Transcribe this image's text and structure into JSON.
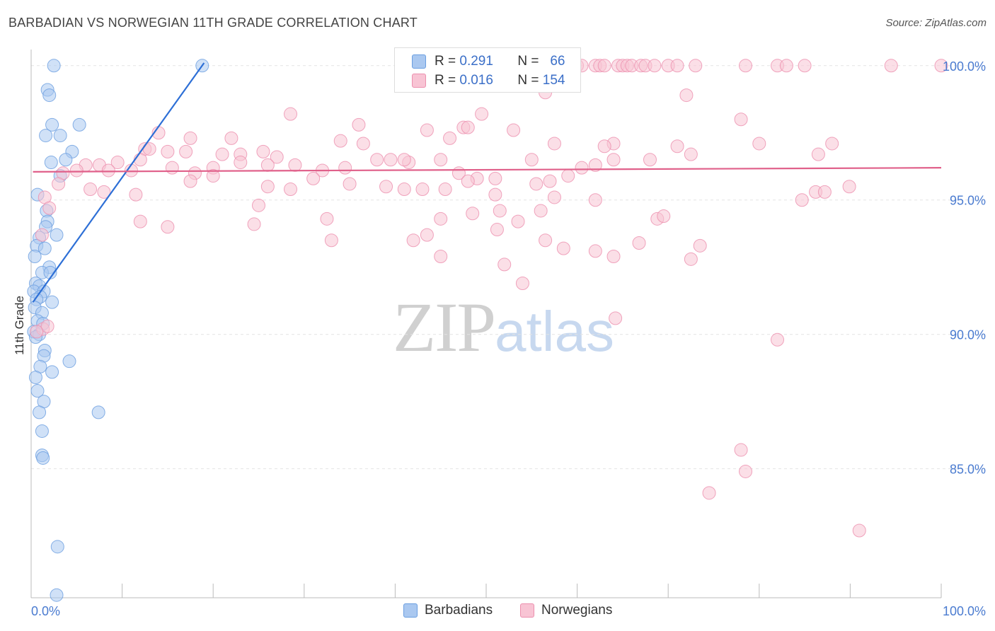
{
  "title": "BARBADIAN VS NORWEGIAN 11TH GRADE CORRELATION CHART",
  "source": "Source: ZipAtlas.com",
  "watermark": {
    "zip": "ZIP",
    "atlas": "atlas"
  },
  "legend": {
    "rows": [
      {
        "r_label": "R =",
        "r_value": "0.291",
        "n_label": "N =",
        "n_value": "66",
        "color": "#aac8f0",
        "border": "#6a9ee0"
      },
      {
        "r_label": "R =",
        "r_value": "0.016",
        "n_label": "N =",
        "n_value": "154",
        "color": "#f8c4d4",
        "border": "#ec8fae"
      }
    ]
  },
  "bottom_legend": [
    {
      "label": "Barbadians",
      "color": "#aac8f0",
      "border": "#6a9ee0"
    },
    {
      "label": "Norwegians",
      "color": "#f8c4d4",
      "border": "#ec8fae"
    }
  ],
  "chart_data": {
    "type": "scatter",
    "title": "BARBADIAN VS NORWEGIAN 11TH GRADE CORRELATION CHART",
    "xlabel": "",
    "ylabel": "11th Grade",
    "xlim": [
      0,
      100
    ],
    "ylim": [
      80.2,
      100.6
    ],
    "x_tick_labels": [
      "0.0%",
      "100.0%"
    ],
    "y_ticks": [
      85,
      90,
      95,
      100
    ],
    "y_tick_labels": [
      "85.0%",
      "90.0%",
      "95.0%",
      "100.0%"
    ],
    "grid": true,
    "series": [
      {
        "name": "Barbadians",
        "color": "#6a9ee0",
        "fill": "#aac8f0",
        "trend": {
          "x": [
            0.2,
            19
          ],
          "y": [
            91.2,
            100.1
          ]
        },
        "points": [
          [
            2.5,
            100
          ],
          [
            18.8,
            100
          ],
          [
            1.8,
            99.1
          ],
          [
            2,
            98.9
          ],
          [
            2.3,
            97.8
          ],
          [
            5.3,
            97.8
          ],
          [
            1.6,
            97.4
          ],
          [
            3.2,
            97.4
          ],
          [
            4.5,
            96.8
          ],
          [
            3.8,
            96.5
          ],
          [
            2.2,
            96.4
          ],
          [
            3.2,
            95.9
          ],
          [
            0.7,
            95.2
          ],
          [
            1.7,
            94.6
          ],
          [
            1.8,
            94.2
          ],
          [
            1.6,
            94.0
          ],
          [
            2.8,
            93.7
          ],
          [
            0.9,
            93.6
          ],
          [
            0.6,
            93.3
          ],
          [
            1.5,
            93.2
          ],
          [
            0.4,
            92.9
          ],
          [
            2.0,
            92.5
          ],
          [
            1.2,
            92.3
          ],
          [
            2.1,
            92.3
          ],
          [
            0.5,
            91.9
          ],
          [
            0.9,
            91.8
          ],
          [
            0.3,
            91.6
          ],
          [
            1.4,
            91.6
          ],
          [
            1.0,
            91.4
          ],
          [
            0.6,
            91.3
          ],
          [
            2.3,
            91.2
          ],
          [
            0.4,
            91.0
          ],
          [
            1.2,
            90.8
          ],
          [
            0.7,
            90.5
          ],
          [
            1.3,
            90.4
          ],
          [
            0.3,
            90.1
          ],
          [
            0.9,
            90.0
          ],
          [
            0.5,
            89.9
          ],
          [
            1.5,
            89.4
          ],
          [
            1.4,
            89.2
          ],
          [
            4.2,
            89.0
          ],
          [
            1.0,
            88.8
          ],
          [
            2.3,
            88.6
          ],
          [
            0.5,
            88.4
          ],
          [
            0.7,
            87.9
          ],
          [
            1.4,
            87.5
          ],
          [
            0.9,
            87.1
          ],
          [
            7.4,
            87.1
          ],
          [
            1.2,
            86.4
          ],
          [
            1.2,
            85.5
          ],
          [
            1.3,
            85.4
          ],
          [
            2.9,
            82.1
          ],
          [
            2.8,
            80.3
          ]
        ]
      },
      {
        "name": "Norwegians",
        "color": "#ec8fae",
        "fill": "#f8c4d4",
        "trend": {
          "x": [
            0.2,
            100
          ],
          "y": [
            96.05,
            96.2
          ]
        },
        "points": [
          [
            60,
            100
          ],
          [
            60.5,
            100
          ],
          [
            62,
            100
          ],
          [
            62.5,
            100
          ],
          [
            63,
            100
          ],
          [
            64.5,
            100
          ],
          [
            65,
            100
          ],
          [
            65.5,
            100
          ],
          [
            66,
            100
          ],
          [
            67,
            100
          ],
          [
            67.5,
            100
          ],
          [
            68.5,
            100
          ],
          [
            70,
            100
          ],
          [
            71,
            100
          ],
          [
            73,
            100
          ],
          [
            78.5,
            100
          ],
          [
            82,
            100
          ],
          [
            83,
            100
          ],
          [
            85,
            100
          ],
          [
            94.5,
            100
          ],
          [
            100,
            100
          ],
          [
            56.5,
            99.0
          ],
          [
            72,
            98.9
          ],
          [
            28.5,
            98.2
          ],
          [
            49.5,
            98.2
          ],
          [
            78,
            98.0
          ],
          [
            36,
            97.8
          ],
          [
            43.5,
            97.6
          ],
          [
            47.5,
            97.7
          ],
          [
            48,
            97.7
          ],
          [
            53,
            97.6
          ],
          [
            14,
            97.5
          ],
          [
            17.5,
            97.3
          ],
          [
            22,
            97.3
          ],
          [
            46,
            97.3
          ],
          [
            34,
            97.2
          ],
          [
            36.5,
            97.1
          ],
          [
            57.5,
            97.1
          ],
          [
            64,
            97.1
          ],
          [
            80,
            97.1
          ],
          [
            88,
            97.1
          ],
          [
            71,
            97.0
          ],
          [
            63,
            97.0
          ],
          [
            12.5,
            96.9
          ],
          [
            13,
            96.9
          ],
          [
            15,
            96.8
          ],
          [
            17,
            96.8
          ],
          [
            21,
            96.7
          ],
          [
            23,
            96.7
          ],
          [
            25.5,
            96.8
          ],
          [
            27,
            96.6
          ],
          [
            38,
            96.5
          ],
          [
            41.5,
            96.4
          ],
          [
            55,
            96.5
          ],
          [
            62,
            96.3
          ],
          [
            64,
            96.5
          ],
          [
            68,
            96.5
          ],
          [
            72.5,
            96.7
          ],
          [
            86.5,
            96.7
          ],
          [
            6,
            96.3
          ],
          [
            7.5,
            96.3
          ],
          [
            9.5,
            96.4
          ],
          [
            12,
            96.5
          ],
          [
            15.5,
            96.2
          ],
          [
            18,
            96.0
          ],
          [
            20,
            96.2
          ],
          [
            23,
            96.4
          ],
          [
            26,
            96.3
          ],
          [
            29,
            96.3
          ],
          [
            32,
            96.1
          ],
          [
            34.5,
            96.2
          ],
          [
            39.5,
            96.5
          ],
          [
            41,
            96.5
          ],
          [
            45,
            96.5
          ],
          [
            47,
            96.0
          ],
          [
            49,
            95.8
          ],
          [
            51,
            95.8
          ],
          [
            55.5,
            95.6
          ],
          [
            57,
            95.7
          ],
          [
            59,
            95.9
          ],
          [
            60.5,
            96.2
          ],
          [
            3.5,
            96.0
          ],
          [
            5,
            96.1
          ],
          [
            8.5,
            96.1
          ],
          [
            11,
            96.1
          ],
          [
            17.5,
            95.7
          ],
          [
            20,
            95.9
          ],
          [
            26,
            95.5
          ],
          [
            28.5,
            95.4
          ],
          [
            31,
            95.8
          ],
          [
            35,
            95.6
          ],
          [
            39,
            95.5
          ],
          [
            41,
            95.4
          ],
          [
            43,
            95.4
          ],
          [
            45.5,
            95.4
          ],
          [
            48,
            95.7
          ],
          [
            51,
            95.2
          ],
          [
            57.5,
            95.1
          ],
          [
            62,
            95.0
          ],
          [
            3,
            95.6
          ],
          [
            6.5,
            95.4
          ],
          [
            8,
            95.3
          ],
          [
            11.5,
            95.2
          ],
          [
            25,
            94.8
          ],
          [
            32.5,
            94.3
          ],
          [
            45,
            94.3
          ],
          [
            48.5,
            94.5
          ],
          [
            51.5,
            94.6
          ],
          [
            56,
            94.6
          ],
          [
            1.5,
            95.1
          ],
          [
            2,
            94.7
          ],
          [
            12,
            94.2
          ],
          [
            15,
            94.0
          ],
          [
            24.5,
            94.1
          ],
          [
            33,
            93.5
          ],
          [
            42,
            93.5
          ],
          [
            43.5,
            93.7
          ],
          [
            45,
            92.9
          ],
          [
            52,
            92.6
          ],
          [
            54,
            91.9
          ],
          [
            62,
            93.1
          ],
          [
            64,
            92.9
          ],
          [
            72.5,
            92.8
          ],
          [
            82,
            89.8
          ],
          [
            78,
            85.7
          ],
          [
            78.5,
            84.9
          ],
          [
            74.5,
            84.1
          ],
          [
            91,
            82.7
          ],
          [
            1.2,
            93.7
          ],
          [
            1.3,
            90.2
          ],
          [
            1.8,
            90.3
          ],
          [
            0.6,
            90.1
          ],
          [
            51.2,
            93.9
          ],
          [
            64.2,
            90.6
          ],
          [
            53.5,
            94.2
          ],
          [
            56.5,
            93.5
          ],
          [
            58.5,
            93.2
          ],
          [
            66.8,
            93.4
          ],
          [
            68.8,
            94.3
          ],
          [
            69.5,
            94.4
          ],
          [
            73.5,
            93.3
          ],
          [
            84.7,
            95.0
          ],
          [
            86.2,
            95.3
          ],
          [
            87.2,
            95.3
          ],
          [
            89.9,
            95.5
          ]
        ]
      }
    ]
  }
}
